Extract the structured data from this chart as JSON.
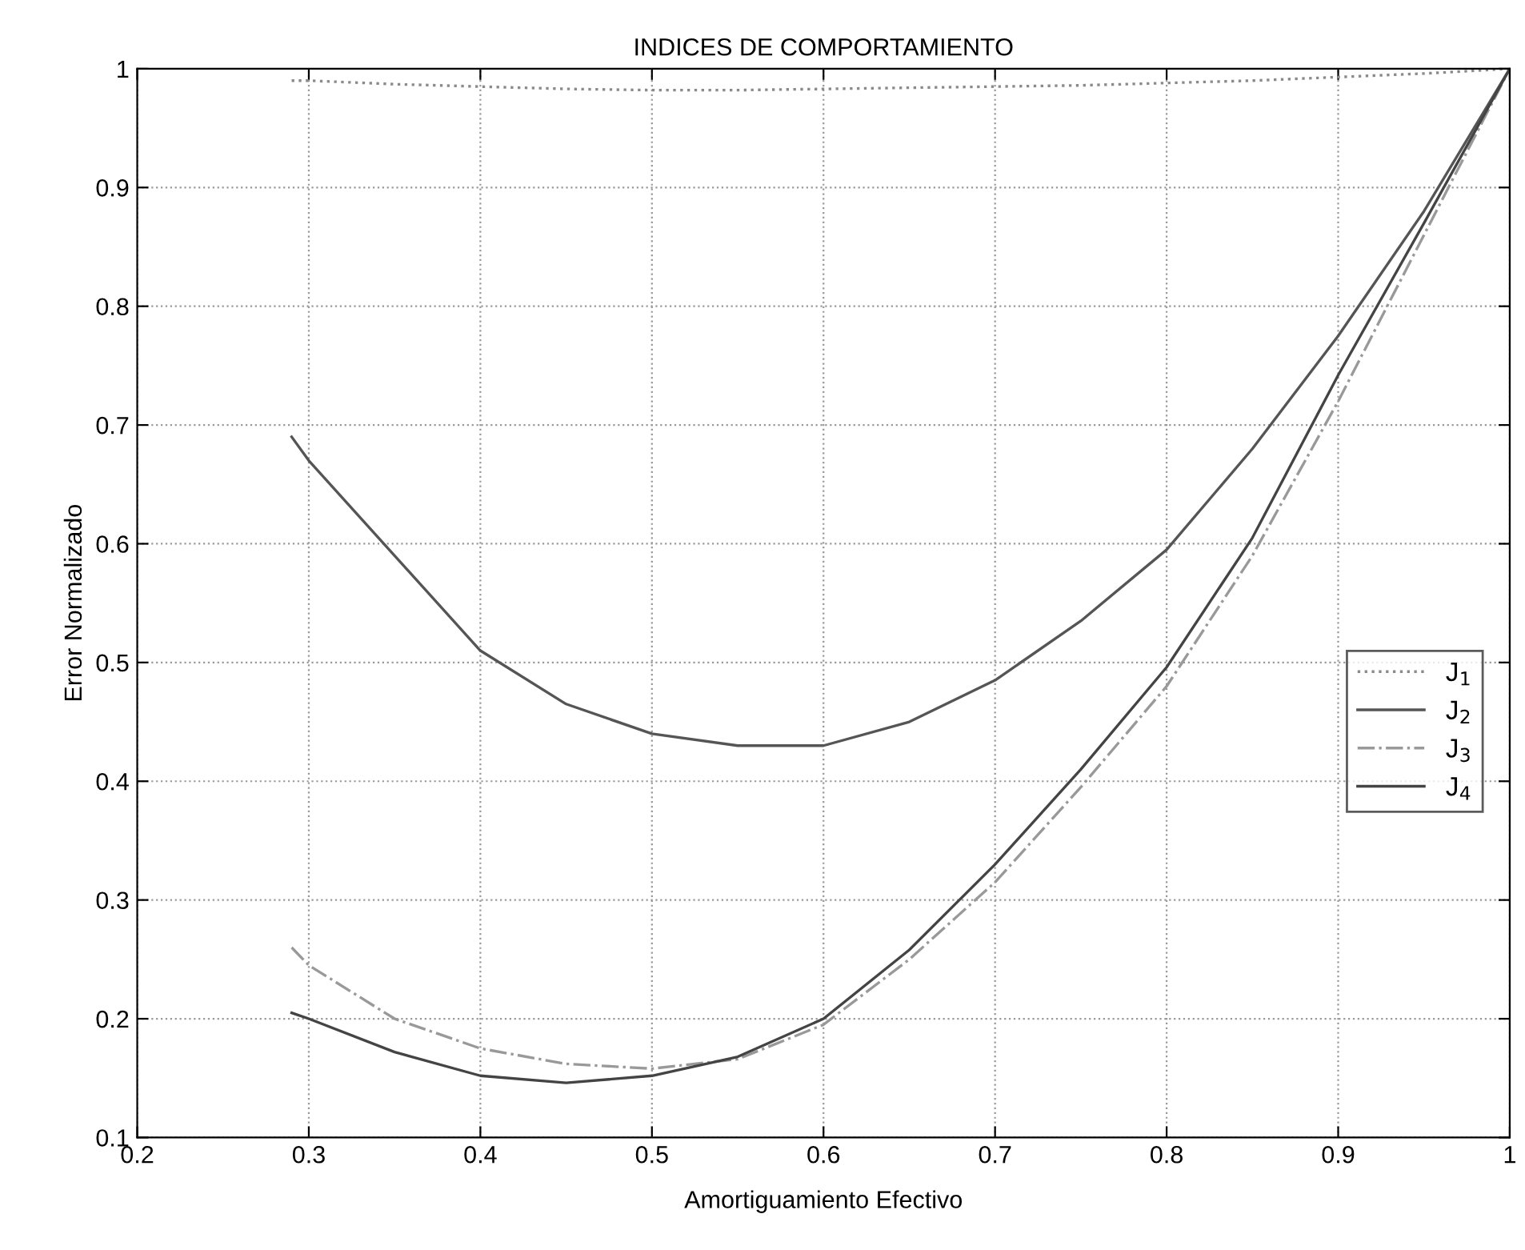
{
  "chart_data": {
    "type": "line",
    "title": "INDICES DE COMPORTAMIENTO",
    "xlabel": "Amortiguamiento Efectivo",
    "ylabel": "Error Normalizado",
    "xlim": [
      0.2,
      1
    ],
    "xticks": [
      0.2,
      0.3,
      0.4,
      0.5,
      0.6,
      0.7,
      0.8,
      0.9,
      1
    ],
    "ylim": [
      0.1,
      1
    ],
    "yticks": [
      0.1,
      0.2,
      0.3,
      0.4,
      0.5,
      0.6,
      0.7,
      0.8,
      0.9,
      1
    ],
    "grid": true,
    "legend": "right",
    "x": [
      0.29,
      0.3,
      0.35,
      0.4,
      0.45,
      0.5,
      0.55,
      0.6,
      0.65,
      0.7,
      0.75,
      0.8,
      0.85,
      0.9,
      0.95,
      1.0
    ],
    "series": [
      {
        "name": "J$_{1}$",
        "color": "#8a8a8a",
        "line_style": "dotted",
        "values": [
          0.99,
          0.99,
          0.987,
          0.985,
          0.983,
          0.982,
          0.982,
          0.983,
          0.984,
          0.985,
          0.986,
          0.988,
          0.99,
          0.993,
          0.996,
          1.0
        ]
      },
      {
        "name": "J$_{2}$",
        "color": "#555555",
        "line_style": "solid",
        "values": [
          0.69,
          0.67,
          0.59,
          0.51,
          0.465,
          0.44,
          0.43,
          0.43,
          0.45,
          0.485,
          0.535,
          0.595,
          0.68,
          0.775,
          0.88,
          1.0
        ]
      },
      {
        "name": "J$_{3}$",
        "color": "#999999",
        "line_style": "dashed",
        "values": [
          0.26,
          0.245,
          0.2,
          0.175,
          0.162,
          0.158,
          0.166,
          0.195,
          0.25,
          0.315,
          0.395,
          0.48,
          0.59,
          0.72,
          0.86,
          1.0
        ]
      },
      {
        "name": "J$_{4}$",
        "color": "#444444",
        "line_style": "solid",
        "values": [
          0.205,
          0.2,
          0.172,
          0.152,
          0.146,
          0.152,
          0.168,
          0.2,
          0.258,
          0.33,
          0.41,
          0.496,
          0.605,
          0.742,
          0.87,
          1.0
        ]
      }
    ]
  }
}
